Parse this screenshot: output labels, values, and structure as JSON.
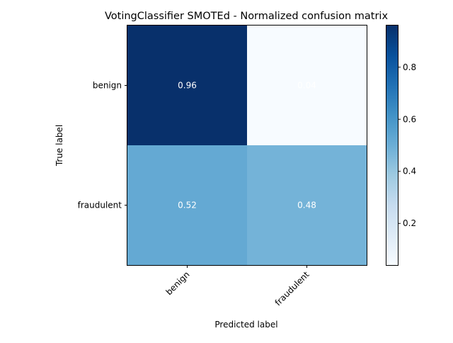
{
  "chart_data": {
    "type": "heatmap",
    "title": "VotingClassifier SMOTEd - Normalized confusion matrix",
    "xlabel": "Predicted label",
    "ylabel": "True label",
    "x_categories": [
      "benign",
      "fraudulent"
    ],
    "y_categories": [
      "benign",
      "fraudulent"
    ],
    "values": [
      [
        0.96,
        0.04
      ],
      [
        0.52,
        0.48
      ]
    ],
    "value_labels": [
      [
        "0.96",
        "0.04"
      ],
      [
        "0.52",
        "0.48"
      ]
    ],
    "colormap": "Blues",
    "color_range": [
      0.04,
      0.96
    ],
    "colorbar_ticks": [
      0.2,
      0.4,
      0.6,
      0.8
    ],
    "colorbar_tick_labels": [
      "0.2",
      "0.4",
      "0.6",
      "0.8"
    ],
    "cell_text_color": "#ffffff"
  }
}
